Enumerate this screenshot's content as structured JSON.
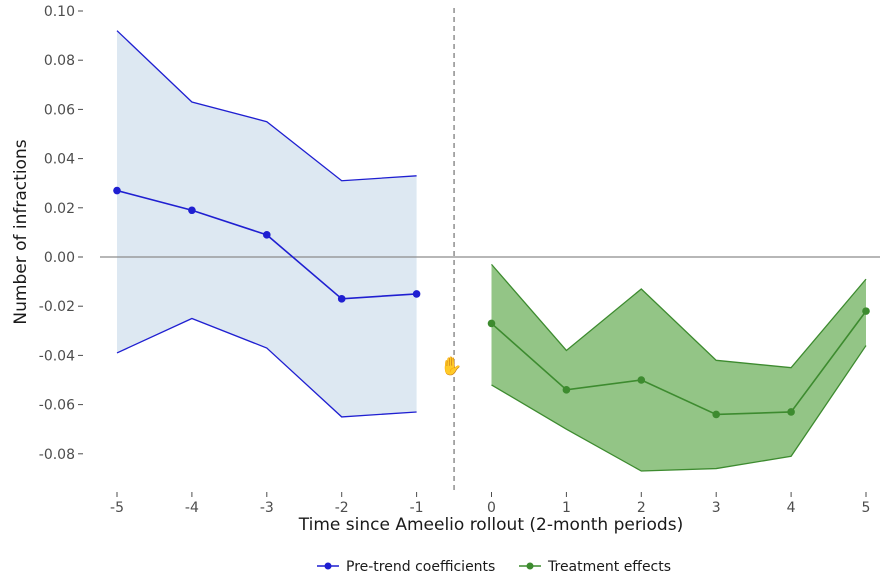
{
  "chart_data": {
    "type": "line",
    "xlabel": "Time since Ameelio rollout (2-month periods)",
    "ylabel": "Number of infractions",
    "xlim": [
      -5,
      5
    ],
    "ylim": [
      -0.08,
      0.1
    ],
    "x_ticks": [
      "-5",
      "-4",
      "-3",
      "-2",
      "-1",
      "0",
      "1",
      "2",
      "3",
      "4",
      "5"
    ],
    "y_ticks": [
      "0.10",
      "0.08",
      "0.06",
      "0.04",
      "0.02",
      "0.00",
      "-0.02",
      "-0.04",
      "-0.06",
      "-0.08"
    ],
    "reference_lines": {
      "horizontal_y": 0.0,
      "vertical_x": -0.5
    },
    "grid": false,
    "legend_position": "bottom",
    "series": [
      {
        "name": "Pre-trend coefficients",
        "color": "#1f1fd1",
        "band_color": "#dde8f2",
        "x": [
          -5,
          -4,
          -3,
          -2,
          -1
        ],
        "values": [
          0.027,
          0.019,
          0.009,
          -0.017,
          -0.015
        ],
        "lower": [
          -0.039,
          -0.025,
          -0.037,
          -0.065,
          -0.063
        ],
        "upper": [
          0.092,
          0.063,
          0.055,
          0.031,
          0.033
        ]
      },
      {
        "name": "Treatment effects",
        "color": "#3d8b2f",
        "band_color": "#93c586",
        "x": [
          0,
          1,
          2,
          3,
          4,
          5
        ],
        "values": [
          -0.027,
          -0.054,
          -0.05,
          -0.064,
          -0.063,
          -0.022
        ],
        "lower": [
          -0.052,
          -0.07,
          -0.087,
          -0.086,
          -0.081,
          -0.036
        ],
        "upper": [
          -0.003,
          -0.038,
          -0.013,
          -0.042,
          -0.045,
          -0.009
        ]
      }
    ]
  }
}
